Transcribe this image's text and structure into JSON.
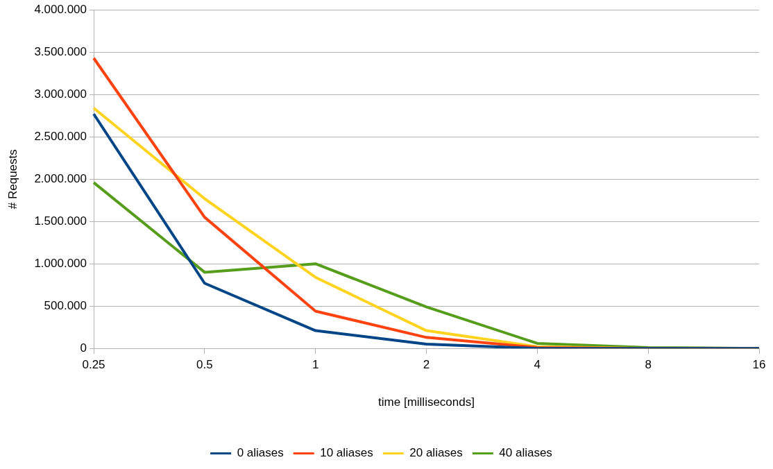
{
  "chart_data": {
    "type": "line",
    "xlabel": "time [milliseconds]",
    "ylabel": "# Requests",
    "categories": [
      "0.25",
      "0.5",
      "1",
      "2",
      "4",
      "8",
      "16"
    ],
    "series": [
      {
        "name": "0 aliases",
        "color": "#004586",
        "values": [
          2770000,
          770000,
          210000,
          50000,
          0,
          0,
          0
        ]
      },
      {
        "name": "10 aliases",
        "color": "#ff420e",
        "values": [
          3430000,
          1550000,
          440000,
          130000,
          10000,
          0,
          0
        ]
      },
      {
        "name": "20 aliases",
        "color": "#ffd320",
        "values": [
          2840000,
          1770000,
          840000,
          210000,
          20000,
          0,
          0
        ]
      },
      {
        "name": "40 aliases",
        "color": "#579d1c",
        "values": [
          1960000,
          900000,
          1000000,
          490000,
          60000,
          10000,
          0
        ]
      }
    ],
    "ylim": [
      0,
      4000000
    ],
    "yticks": [
      {
        "value": 0,
        "label": "0"
      },
      {
        "value": 500000,
        "label": "500.000"
      },
      {
        "value": 1000000,
        "label": "1.000.000"
      },
      {
        "value": 1500000,
        "label": "1.500.000"
      },
      {
        "value": 2000000,
        "label": "2.000.000"
      },
      {
        "value": 2500000,
        "label": "2.500.000"
      },
      {
        "value": 3000000,
        "label": "3.000.000"
      },
      {
        "value": 3500000,
        "label": "3.500.000"
      },
      {
        "value": 4000000,
        "label": "4.000.000"
      }
    ],
    "grid": "y",
    "legend": "bottom",
    "marker": "none",
    "line_style": "solid"
  }
}
